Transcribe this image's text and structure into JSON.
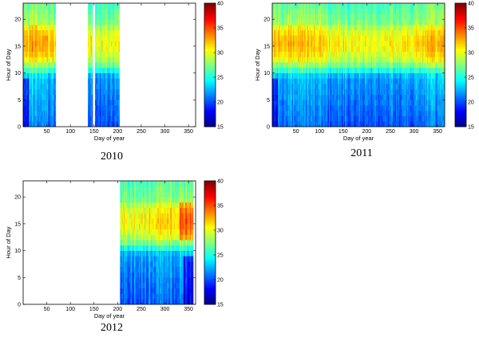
{
  "figure": {
    "colormap": "jet"
  },
  "chart_data": [
    {
      "type": "heatmap",
      "caption": "2010",
      "xlabel": "Day of year",
      "ylabel": "Hour of Day",
      "xlim": [
        0,
        365
      ],
      "ylim": [
        0,
        23
      ],
      "xticks": [
        50,
        100,
        150,
        200,
        250,
        300,
        350
      ],
      "yticks": [
        0,
        5,
        10,
        15,
        20
      ],
      "colorbar": {
        "min": 15,
        "max": 40,
        "ticks": [
          15,
          20,
          25,
          30,
          35,
          40
        ]
      },
      "data_day_ranges": [
        [
          0,
          69
        ],
        [
          137,
          147
        ],
        [
          152,
          204
        ]
      ],
      "description_values": {
        "night_hours_0_9": "approx 18-24",
        "day_hours_12_18": "approx 28-36"
      }
    },
    {
      "type": "heatmap",
      "caption": "2011",
      "xlabel": "Day of year",
      "ylabel": "Hour of Day",
      "xlim": [
        0,
        365
      ],
      "ylim": [
        0,
        23
      ],
      "xticks": [
        50,
        100,
        150,
        200,
        250,
        300,
        350
      ],
      "yticks": [
        0,
        5,
        10,
        15,
        20
      ],
      "colorbar": {
        "min": 15,
        "max": 40,
        "ticks": [
          15,
          20,
          25,
          30,
          35,
          40
        ]
      },
      "data_day_ranges": [
        [
          0,
          365
        ]
      ],
      "description_values": {
        "night_hours_0_9": "approx 18-25",
        "day_hours_12_18": "approx 27-36"
      }
    },
    {
      "type": "heatmap",
      "caption": "2012",
      "xlabel": "Day of year",
      "ylabel": "Hour of Day",
      "xlim": [
        0,
        365
      ],
      "ylim": [
        0,
        23
      ],
      "xticks": [
        50,
        100,
        150,
        200,
        250,
        300,
        350
      ],
      "yticks": [
        0,
        5,
        10,
        15,
        20
      ],
      "colorbar": {
        "min": 15,
        "max": 40,
        "ticks": [
          15,
          20,
          25,
          30,
          35,
          40
        ]
      },
      "data_day_ranges": [
        [
          205,
          360
        ]
      ],
      "description_values": {
        "night_hours_0_9": "approx 19-24",
        "day_hours_12_18": "approx 27-34"
      }
    }
  ]
}
